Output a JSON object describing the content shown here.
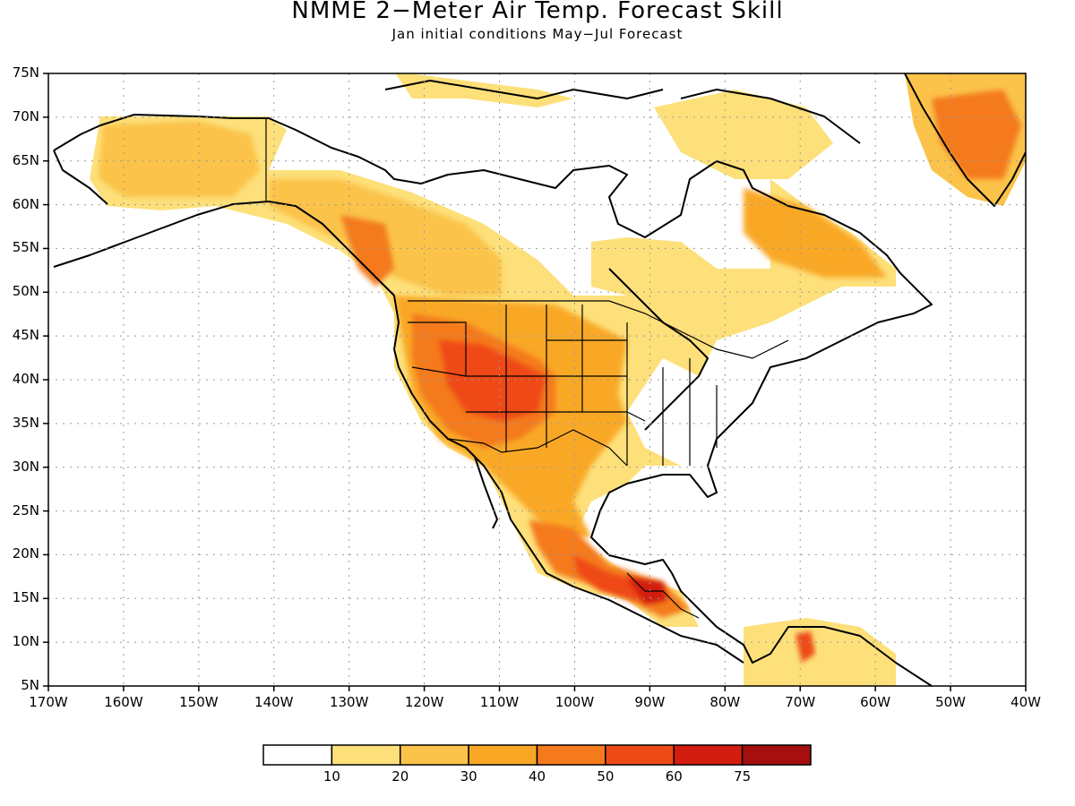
{
  "title": "NMME 2−Meter Air Temp. Forecast Skill",
  "subtitle": "Jan initial conditions   May−Jul Forecast",
  "map": {
    "lat_labels": [
      "75N",
      "70N",
      "65N",
      "60N",
      "55N",
      "50N",
      "45N",
      "40N",
      "35N",
      "30N",
      "25N",
      "20N",
      "15N",
      "10N",
      "5N"
    ],
    "lon_labels": [
      "170W",
      "160W",
      "150W",
      "140W",
      "130W",
      "120W",
      "110W",
      "100W",
      "90W",
      "80W",
      "70W",
      "60W",
      "50W",
      "40W"
    ],
    "lat_range": [
      5,
      75
    ],
    "lon_range": [
      -170,
      -40
    ],
    "gridlines": "dotted"
  },
  "colorbar": {
    "labels": [
      "10",
      "20",
      "30",
      "40",
      "50",
      "60",
      "75"
    ],
    "colors": [
      "#ffffff",
      "#fde07a",
      "#fbc34a",
      "#f9a825",
      "#f47a1c",
      "#ee4a16",
      "#d21d10",
      "#a50f0f"
    ]
  }
}
